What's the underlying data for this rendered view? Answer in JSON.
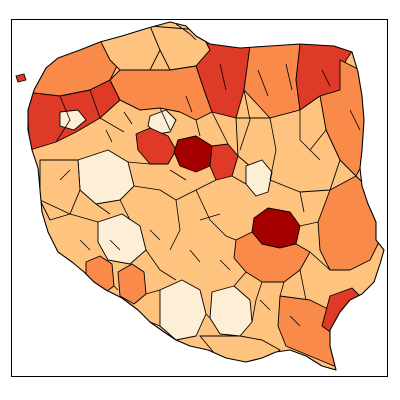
{
  "map": {
    "palette": {
      "c1": "#fdeed6",
      "c2": "#fdc37f",
      "c3": "#f98a4a",
      "c4": "#df3a27",
      "c5": "#a50000"
    },
    "regions": [
      {
        "id": "west-coast",
        "class": "c3"
      },
      {
        "id": "coast-mid",
        "class": "c2"
      },
      {
        "id": "coast-east",
        "class": "c2"
      },
      {
        "id": "gdansk-area",
        "class": "c4"
      },
      {
        "id": "masuria",
        "class": "c3"
      },
      {
        "id": "north-east",
        "class": "c4"
      },
      {
        "id": "podlasie",
        "class": "c3"
      },
      {
        "id": "west-pomerania",
        "class": "c4"
      },
      {
        "id": "north-central",
        "class": "c3"
      },
      {
        "id": "lake-district",
        "class": "c1"
      },
      {
        "id": "kuyavia-west",
        "class": "c4"
      },
      {
        "id": "kuyavia-core",
        "class": "c5"
      },
      {
        "id": "kuyavia-east",
        "class": "c4"
      },
      {
        "id": "greater-poland",
        "class": "c2"
      },
      {
        "id": "poznan-area",
        "class": "c1"
      },
      {
        "id": "lubusz",
        "class": "c2"
      },
      {
        "id": "central-ring",
        "class": "c2"
      },
      {
        "id": "lodz-area",
        "class": "c1"
      },
      {
        "id": "masovia-north",
        "class": "c2"
      },
      {
        "id": "warsaw-area",
        "class": "c5"
      },
      {
        "id": "masovia-south",
        "class": "c3"
      },
      {
        "id": "lublin",
        "class": "c3"
      },
      {
        "id": "lower-silesia",
        "class": "c2"
      },
      {
        "id": "sudetes",
        "class": "c3"
      },
      {
        "id": "silesia",
        "class": "c1"
      },
      {
        "id": "lesser-poland",
        "class": "c2"
      },
      {
        "id": "subcarpathia",
        "class": "c3"
      },
      {
        "id": "south-east",
        "class": "c4"
      },
      {
        "id": "pomerania-west",
        "class": "c2"
      }
    ]
  }
}
